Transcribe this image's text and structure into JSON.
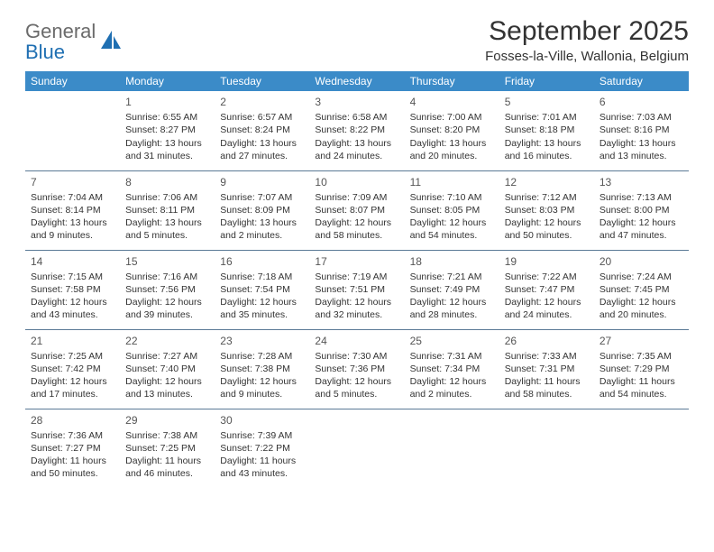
{
  "brand": {
    "part1": "General",
    "part2": "Blue"
  },
  "title": "September 2025",
  "location": "Fosses-la-Ville, Wallonia, Belgium",
  "day_headers": [
    "Sunday",
    "Monday",
    "Tuesday",
    "Wednesday",
    "Thursday",
    "Friday",
    "Saturday"
  ],
  "header_bg": "#3b8bc8",
  "header_fg": "#ffffff",
  "row_border": "#5b7a96",
  "weeks": [
    [
      {
        "num": "",
        "sunrise": "",
        "sunset": "",
        "daylight1": "",
        "daylight2": ""
      },
      {
        "num": "1",
        "sunrise": "Sunrise: 6:55 AM",
        "sunset": "Sunset: 8:27 PM",
        "daylight1": "Daylight: 13 hours",
        "daylight2": "and 31 minutes."
      },
      {
        "num": "2",
        "sunrise": "Sunrise: 6:57 AM",
        "sunset": "Sunset: 8:24 PM",
        "daylight1": "Daylight: 13 hours",
        "daylight2": "and 27 minutes."
      },
      {
        "num": "3",
        "sunrise": "Sunrise: 6:58 AM",
        "sunset": "Sunset: 8:22 PM",
        "daylight1": "Daylight: 13 hours",
        "daylight2": "and 24 minutes."
      },
      {
        "num": "4",
        "sunrise": "Sunrise: 7:00 AM",
        "sunset": "Sunset: 8:20 PM",
        "daylight1": "Daylight: 13 hours",
        "daylight2": "and 20 minutes."
      },
      {
        "num": "5",
        "sunrise": "Sunrise: 7:01 AM",
        "sunset": "Sunset: 8:18 PM",
        "daylight1": "Daylight: 13 hours",
        "daylight2": "and 16 minutes."
      },
      {
        "num": "6",
        "sunrise": "Sunrise: 7:03 AM",
        "sunset": "Sunset: 8:16 PM",
        "daylight1": "Daylight: 13 hours",
        "daylight2": "and 13 minutes."
      }
    ],
    [
      {
        "num": "7",
        "sunrise": "Sunrise: 7:04 AM",
        "sunset": "Sunset: 8:14 PM",
        "daylight1": "Daylight: 13 hours",
        "daylight2": "and 9 minutes."
      },
      {
        "num": "8",
        "sunrise": "Sunrise: 7:06 AM",
        "sunset": "Sunset: 8:11 PM",
        "daylight1": "Daylight: 13 hours",
        "daylight2": "and 5 minutes."
      },
      {
        "num": "9",
        "sunrise": "Sunrise: 7:07 AM",
        "sunset": "Sunset: 8:09 PM",
        "daylight1": "Daylight: 13 hours",
        "daylight2": "and 2 minutes."
      },
      {
        "num": "10",
        "sunrise": "Sunrise: 7:09 AM",
        "sunset": "Sunset: 8:07 PM",
        "daylight1": "Daylight: 12 hours",
        "daylight2": "and 58 minutes."
      },
      {
        "num": "11",
        "sunrise": "Sunrise: 7:10 AM",
        "sunset": "Sunset: 8:05 PM",
        "daylight1": "Daylight: 12 hours",
        "daylight2": "and 54 minutes."
      },
      {
        "num": "12",
        "sunrise": "Sunrise: 7:12 AM",
        "sunset": "Sunset: 8:03 PM",
        "daylight1": "Daylight: 12 hours",
        "daylight2": "and 50 minutes."
      },
      {
        "num": "13",
        "sunrise": "Sunrise: 7:13 AM",
        "sunset": "Sunset: 8:00 PM",
        "daylight1": "Daylight: 12 hours",
        "daylight2": "and 47 minutes."
      }
    ],
    [
      {
        "num": "14",
        "sunrise": "Sunrise: 7:15 AM",
        "sunset": "Sunset: 7:58 PM",
        "daylight1": "Daylight: 12 hours",
        "daylight2": "and 43 minutes."
      },
      {
        "num": "15",
        "sunrise": "Sunrise: 7:16 AM",
        "sunset": "Sunset: 7:56 PM",
        "daylight1": "Daylight: 12 hours",
        "daylight2": "and 39 minutes."
      },
      {
        "num": "16",
        "sunrise": "Sunrise: 7:18 AM",
        "sunset": "Sunset: 7:54 PM",
        "daylight1": "Daylight: 12 hours",
        "daylight2": "and 35 minutes."
      },
      {
        "num": "17",
        "sunrise": "Sunrise: 7:19 AM",
        "sunset": "Sunset: 7:51 PM",
        "daylight1": "Daylight: 12 hours",
        "daylight2": "and 32 minutes."
      },
      {
        "num": "18",
        "sunrise": "Sunrise: 7:21 AM",
        "sunset": "Sunset: 7:49 PM",
        "daylight1": "Daylight: 12 hours",
        "daylight2": "and 28 minutes."
      },
      {
        "num": "19",
        "sunrise": "Sunrise: 7:22 AM",
        "sunset": "Sunset: 7:47 PM",
        "daylight1": "Daylight: 12 hours",
        "daylight2": "and 24 minutes."
      },
      {
        "num": "20",
        "sunrise": "Sunrise: 7:24 AM",
        "sunset": "Sunset: 7:45 PM",
        "daylight1": "Daylight: 12 hours",
        "daylight2": "and 20 minutes."
      }
    ],
    [
      {
        "num": "21",
        "sunrise": "Sunrise: 7:25 AM",
        "sunset": "Sunset: 7:42 PM",
        "daylight1": "Daylight: 12 hours",
        "daylight2": "and 17 minutes."
      },
      {
        "num": "22",
        "sunrise": "Sunrise: 7:27 AM",
        "sunset": "Sunset: 7:40 PM",
        "daylight1": "Daylight: 12 hours",
        "daylight2": "and 13 minutes."
      },
      {
        "num": "23",
        "sunrise": "Sunrise: 7:28 AM",
        "sunset": "Sunset: 7:38 PM",
        "daylight1": "Daylight: 12 hours",
        "daylight2": "and 9 minutes."
      },
      {
        "num": "24",
        "sunrise": "Sunrise: 7:30 AM",
        "sunset": "Sunset: 7:36 PM",
        "daylight1": "Daylight: 12 hours",
        "daylight2": "and 5 minutes."
      },
      {
        "num": "25",
        "sunrise": "Sunrise: 7:31 AM",
        "sunset": "Sunset: 7:34 PM",
        "daylight1": "Daylight: 12 hours",
        "daylight2": "and 2 minutes."
      },
      {
        "num": "26",
        "sunrise": "Sunrise: 7:33 AM",
        "sunset": "Sunset: 7:31 PM",
        "daylight1": "Daylight: 11 hours",
        "daylight2": "and 58 minutes."
      },
      {
        "num": "27",
        "sunrise": "Sunrise: 7:35 AM",
        "sunset": "Sunset: 7:29 PM",
        "daylight1": "Daylight: 11 hours",
        "daylight2": "and 54 minutes."
      }
    ],
    [
      {
        "num": "28",
        "sunrise": "Sunrise: 7:36 AM",
        "sunset": "Sunset: 7:27 PM",
        "daylight1": "Daylight: 11 hours",
        "daylight2": "and 50 minutes."
      },
      {
        "num": "29",
        "sunrise": "Sunrise: 7:38 AM",
        "sunset": "Sunset: 7:25 PM",
        "daylight1": "Daylight: 11 hours",
        "daylight2": "and 46 minutes."
      },
      {
        "num": "30",
        "sunrise": "Sunrise: 7:39 AM",
        "sunset": "Sunset: 7:22 PM",
        "daylight1": "Daylight: 11 hours",
        "daylight2": "and 43 minutes."
      },
      {
        "num": "",
        "sunrise": "",
        "sunset": "",
        "daylight1": "",
        "daylight2": ""
      },
      {
        "num": "",
        "sunrise": "",
        "sunset": "",
        "daylight1": "",
        "daylight2": ""
      },
      {
        "num": "",
        "sunrise": "",
        "sunset": "",
        "daylight1": "",
        "daylight2": ""
      },
      {
        "num": "",
        "sunrise": "",
        "sunset": "",
        "daylight1": "",
        "daylight2": ""
      }
    ]
  ]
}
